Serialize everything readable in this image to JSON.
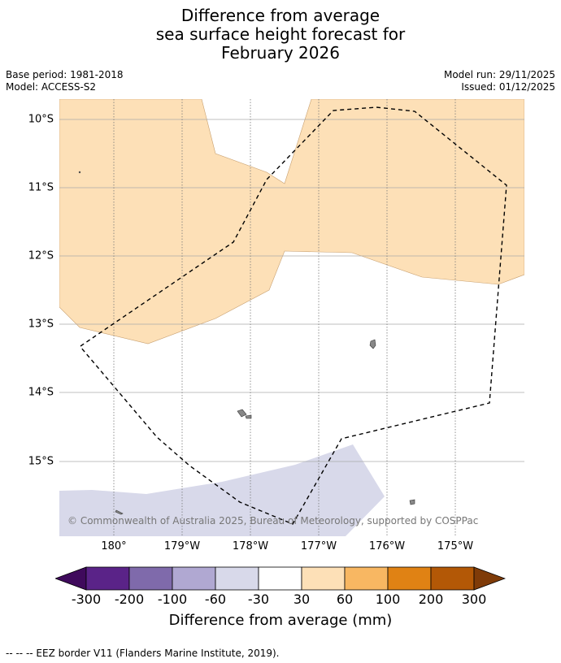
{
  "title_lines": [
    "Difference from average",
    "sea surface height forecast for",
    "February 2026"
  ],
  "meta_left": [
    "Base period: 1981-2018",
    "Model: ACCESS-S2"
  ],
  "meta_right": [
    "Model run: 29/11/2025",
    "Issued: 01/12/2025"
  ],
  "lat_labels": [
    "10°S",
    "11°S",
    "12°S",
    "13°S",
    "14°S",
    "15°S"
  ],
  "lon_labels": [
    "180°",
    "179°W",
    "178°W",
    "177°W",
    "176°W",
    "175°W"
  ],
  "copyright": "© Commonwealth of Australia 2025, Bureau of Meteorology, supported by COSPPac",
  "colorbar": {
    "ticks": [
      "-300",
      "-200",
      "-100",
      "-60",
      "-30",
      "30",
      "60",
      "100",
      "200",
      "300"
    ],
    "colors": [
      "#3f0a5c",
      "#5a2388",
      "#7f6aab",
      "#b0a8d2",
      "#d8d9ea",
      "#ffffff",
      "#fde0b7",
      "#f8b762",
      "#e08214",
      "#b35806",
      "#7f3b08"
    ],
    "label": "Difference from average (mm)"
  },
  "colors": {
    "positive_fill": "#fde0b7",
    "negative_fill": "#d8d9ea",
    "grid": "#aaaaaa",
    "island": "#888888"
  },
  "legend": "--  --  -- EEZ border V11 (Flanders Marine Institute, 2019)."
}
